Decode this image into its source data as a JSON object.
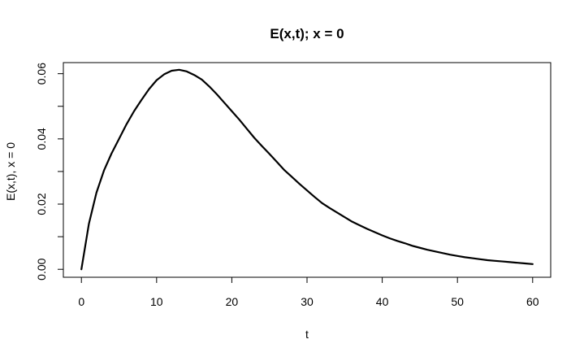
{
  "chart_data": {
    "type": "line",
    "title": "E(x,t); x = 0",
    "xlabel": "t",
    "ylabel": "E(x,t), x = 0",
    "xlim": [
      -2.4,
      62.4
    ],
    "ylim": [
      -0.00244,
      0.0634
    ],
    "x_ticks": [
      0,
      10,
      20,
      30,
      40,
      50,
      60
    ],
    "x_tick_labels": [
      "0",
      "10",
      "20",
      "30",
      "40",
      "50",
      "60"
    ],
    "y_ticks": [
      0.0,
      0.01,
      0.02,
      0.03,
      0.04,
      0.05,
      0.06
    ],
    "y_tick_labels": [
      "0.00",
      "",
      "0.02",
      "",
      "0.04",
      "",
      "0.06"
    ],
    "grid": false,
    "legend": "none",
    "series": [
      {
        "color": "#000000",
        "x": [
          0,
          0.5,
          1,
          2,
          3,
          4,
          5,
          6,
          7,
          8,
          9,
          10,
          11,
          12,
          13,
          14,
          15,
          16,
          17,
          18,
          19,
          20,
          21,
          22,
          23,
          24,
          25,
          26,
          27,
          28,
          29,
          30,
          31,
          32,
          33,
          34,
          35,
          36,
          37,
          38,
          39,
          40,
          41,
          42,
          43,
          44,
          45,
          46,
          47,
          48,
          49,
          50,
          51,
          52,
          53,
          54,
          55,
          56,
          57,
          58,
          59,
          60
        ],
        "y": [
          0.0,
          0.007,
          0.014,
          0.0235,
          0.0303,
          0.0355,
          0.04,
          0.0445,
          0.0485,
          0.052,
          0.0553,
          0.058,
          0.0598,
          0.0609,
          0.0612,
          0.0607,
          0.0596,
          0.0582,
          0.0561,
          0.0537,
          0.0511,
          0.0485,
          0.0459,
          0.0431,
          0.0403,
          0.0378,
          0.0354,
          0.0329,
          0.0304,
          0.0283,
          0.0262,
          0.0242,
          0.0222,
          0.0203,
          0.0188,
          0.0174,
          0.016,
          0.0146,
          0.0135,
          0.0124,
          0.0114,
          0.0104,
          0.0095,
          0.0087,
          0.008,
          0.0072,
          0.0066,
          0.006,
          0.0055,
          0.005,
          0.0045,
          0.0041,
          0.0037,
          0.0034,
          0.0031,
          0.0028,
          0.0026,
          0.0024,
          0.0022,
          0.002,
          0.0018,
          0.0016
        ]
      }
    ]
  }
}
